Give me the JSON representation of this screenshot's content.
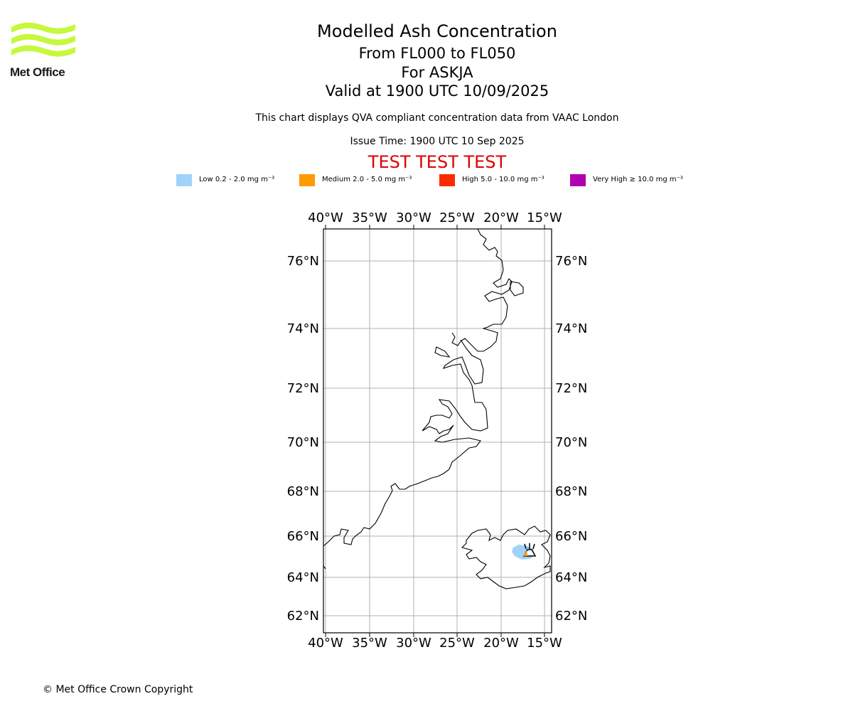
{
  "logo": {
    "text": "Met Office",
    "color": "#c6f83c"
  },
  "header": {
    "title": "Modelled Ash Concentration",
    "line2": "From FL000 to FL050",
    "line3": "For ASKJA",
    "line4": "Valid at 1900 UTC 10/09/2025",
    "description": "This chart displays QVA compliant concentration data from VAAC London",
    "issue_time": "Issue Time: 1900 UTC 10 Sep 2025",
    "test_banner": "TEST TEST TEST"
  },
  "legend": [
    {
      "label": "Low 0.2 - 2.0 mg m⁻³",
      "color": "#a0d2fa"
    },
    {
      "label": "Medium 2.0 - 5.0 mg m⁻³",
      "color": "#ff9a00"
    },
    {
      "label": "High 5.0 - 10.0 mg m⁻³",
      "color": "#ff2a00"
    },
    {
      "label": "Very High  ≥  10.0 mg m⁻³",
      "color": "#b000b0"
    }
  ],
  "map": {
    "lon_labels": [
      "40°W",
      "35°W",
      "30°W",
      "25°W",
      "20°W",
      "15°W"
    ],
    "lat_labels": [
      "76°N",
      "74°N",
      "72°N",
      "70°N",
      "68°N",
      "66°N",
      "64°N",
      "62°N"
    ],
    "volcano": "ASKJA",
    "ash_concentration": "Low"
  },
  "footer": {
    "copyright": "© Met Office Crown Copyright"
  }
}
